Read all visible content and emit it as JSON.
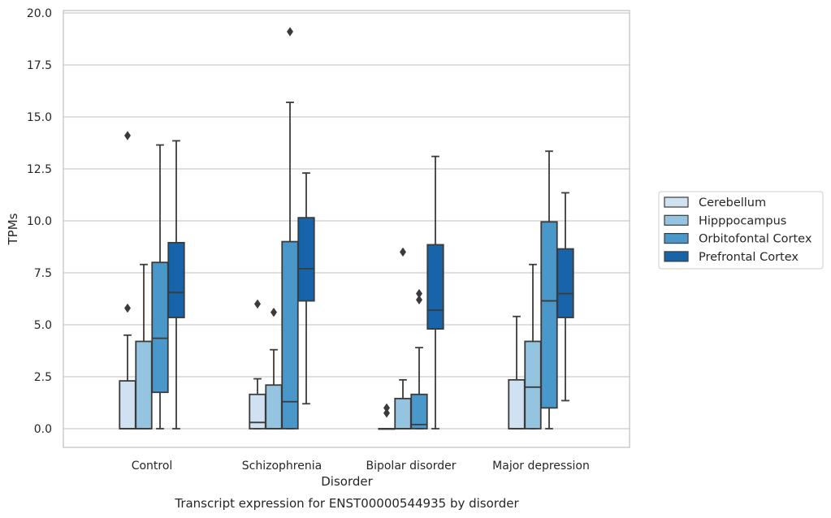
{
  "chart_data": {
    "type": "box",
    "title": "",
    "caption": "Transcript expression for ENST00000544935 by disorder",
    "xlabel": "Disorder",
    "ylabel": "TPMs",
    "ylim": [
      -0.9,
      20.2
    ],
    "yticks": [
      "0.0",
      "2.5",
      "5.0",
      "7.5",
      "10.0",
      "12.5",
      "15.0",
      "17.5",
      "20.0"
    ],
    "grid": "horizontal",
    "legend_position": "right",
    "categories": [
      "Control",
      "Schizophrenia",
      "Bipolar disorder",
      "Major depression"
    ],
    "series": [
      {
        "name": "Cerebellum",
        "color": "#d0e1f2",
        "boxes": [
          {
            "whislo": 0,
            "q1": 0,
            "med": 0,
            "q3": 2.3,
            "whishi": 4.5,
            "fliers": [
              5.8,
              14.1
            ]
          },
          {
            "whislo": 0,
            "q1": 0,
            "med": 0.3,
            "q3": 1.65,
            "whishi": 2.4,
            "fliers": [
              6.0
            ]
          },
          {
            "whislo": 0,
            "q1": 0,
            "med": 0,
            "q3": 0,
            "whishi": 0,
            "fliers": [
              0.75,
              1.0
            ]
          },
          {
            "whislo": 0,
            "q1": 0,
            "med": 0,
            "q3": 2.35,
            "whishi": 5.4,
            "fliers": []
          }
        ]
      },
      {
        "name": "Hipppocampus",
        "color": "#94c4df",
        "boxes": [
          {
            "whislo": 0,
            "q1": 0,
            "med": 0,
            "q3": 4.2,
            "whishi": 7.9,
            "fliers": []
          },
          {
            "whislo": 0,
            "q1": 0,
            "med": 0,
            "q3": 2.1,
            "whishi": 3.8,
            "fliers": [
              5.6
            ]
          },
          {
            "whislo": 0,
            "q1": 0,
            "med": 0,
            "q3": 1.45,
            "whishi": 2.35,
            "fliers": [
              8.5
            ]
          },
          {
            "whislo": 0,
            "q1": 0,
            "med": 2.0,
            "q3": 4.2,
            "whishi": 7.9,
            "fliers": []
          }
        ]
      },
      {
        "name": "Orbitofontal Cortex",
        "color": "#4a98c9",
        "boxes": [
          {
            "whislo": 0,
            "q1": 1.75,
            "med": 4.35,
            "q3": 8.0,
            "whishi": 13.65,
            "fliers": []
          },
          {
            "whislo": 0,
            "q1": 0,
            "med": 1.3,
            "q3": 9.0,
            "whishi": 15.7,
            "fliers": [
              19.1
            ]
          },
          {
            "whislo": 0,
            "q1": 0,
            "med": 0.2,
            "q3": 1.65,
            "whishi": 3.9,
            "fliers": [
              6.2,
              6.5
            ]
          },
          {
            "whislo": 0,
            "q1": 1.0,
            "med": 6.15,
            "q3": 9.95,
            "whishi": 13.35,
            "fliers": []
          }
        ]
      },
      {
        "name": "Prefrontal Cortex",
        "color": "#1764ab",
        "boxes": [
          {
            "whislo": 0,
            "q1": 5.35,
            "med": 6.55,
            "q3": 8.95,
            "whishi": 13.85,
            "fliers": []
          },
          {
            "whislo": 1.2,
            "q1": 6.15,
            "med": 7.7,
            "q3": 10.15,
            "whishi": 12.3,
            "fliers": []
          },
          {
            "whislo": 0,
            "q1": 4.8,
            "med": 5.7,
            "q3": 8.85,
            "whishi": 13.1,
            "fliers": []
          },
          {
            "whislo": 1.35,
            "q1": 5.35,
            "med": 6.5,
            "q3": 8.65,
            "whishi": 11.35,
            "fliers": []
          }
        ]
      }
    ]
  }
}
